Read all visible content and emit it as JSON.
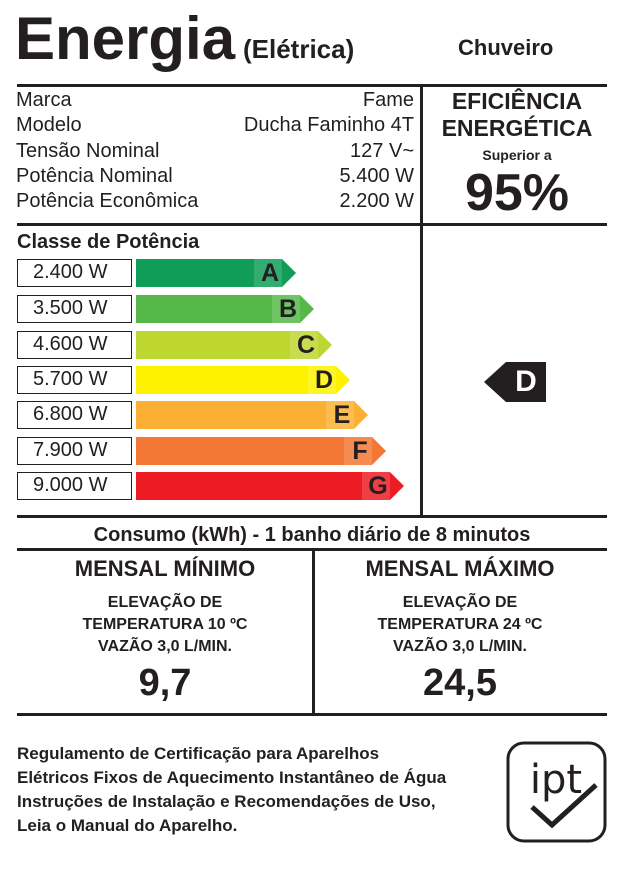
{
  "header": {
    "title": "Energia",
    "subtitle": "(Elétrica)",
    "category": "Chuveiro"
  },
  "specs": [
    {
      "label": "Marca",
      "value": "Fame"
    },
    {
      "label": "Modelo",
      "value": "Ducha Faminho 4T"
    },
    {
      "label": "Tensão Nominal",
      "value": "127 V~"
    },
    {
      "label": "Potência Nominal",
      "value": "5.400 W"
    },
    {
      "label": "Potência Econômica",
      "value": "2.200 W"
    }
  ],
  "efficiency": {
    "title_line1": "EFICIÊNCIA",
    "title_line2": "ENERGÉTICA",
    "subtitle": "Superior a",
    "value": "95%"
  },
  "power_classes": {
    "title": "Classe de Potência",
    "items": [
      {
        "power": "2.400 W",
        "letter": "A",
        "color": "#0f9d58"
      },
      {
        "power": "3.500 W",
        "letter": "B",
        "color": "#55b848"
      },
      {
        "power": "4.600 W",
        "letter": "C",
        "color": "#bed630"
      },
      {
        "power": "5.700 W",
        "letter": "D",
        "color": "#fff200"
      },
      {
        "power": "6.800 W",
        "letter": "E",
        "color": "#fbb034"
      },
      {
        "power": "7.900 W",
        "letter": "F",
        "color": "#f37735"
      },
      {
        "power": "9.000 W",
        "letter": "G",
        "color": "#ed1c24"
      }
    ],
    "rating": "D"
  },
  "consumption": {
    "title": "Consumo (kWh) - 1 banho diário de 8 minutos",
    "min": {
      "title": "MENSAL MÍNIMO",
      "line1": "ELEVAÇÃO DE",
      "line2": "TEMPERATURA 10 ºC",
      "line3": "VAZÃO 3,0 L/MIN.",
      "value": "9,7"
    },
    "max": {
      "title": "MENSAL MÁXIMO",
      "line1": "ELEVAÇÃO DE",
      "line2": "TEMPERATURA 24 ºC",
      "line3": "VAZÃO 3,0 L/MIN.",
      "value": "24,5"
    }
  },
  "footer": {
    "lines": [
      "Regulamento de Certificação para Aparelhos",
      "Elétricos Fixos de Aquecimento Instantâneo de Água",
      "Instruções de Instalação e Recomendações de Uso,",
      "Leia o Manual do Aparelho."
    ],
    "logo_text": "ipt",
    "logo_icon": "ipt-checkmark-logo"
  }
}
